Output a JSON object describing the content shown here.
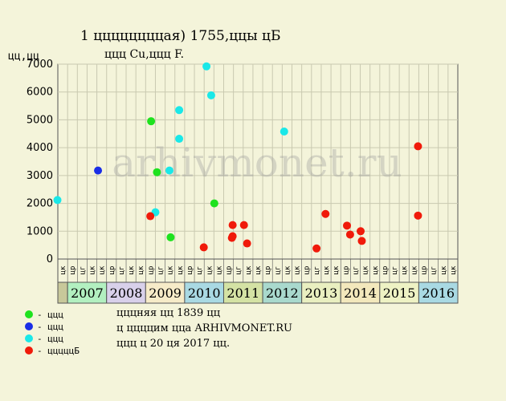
{
  "chart_data": {
    "type": "scatter",
    "title": "1 ццццццццая) 1755,ццы цБ",
    "subtitle": "ццц Cu,ццц F.",
    "ylabel": "цц,цц",
    "ylim": [
      0,
      7000
    ],
    "yticks": [
      0,
      1000,
      2000,
      3000,
      4000,
      5000,
      6000,
      7000
    ],
    "grid": true,
    "quarter_labels": [
      "цк",
      "цр",
      "цг",
      "цк"
    ],
    "years": [
      {
        "label": "2007",
        "color": "#b2f0c0"
      },
      {
        "label": "2008",
        "color": "#d8d0ea"
      },
      {
        "label": "2009",
        "color": "#f6ebc8"
      },
      {
        "label": "2010",
        "color": "#a9d9e3"
      },
      {
        "label": "2011",
        "color": "#d4e2a4"
      },
      {
        "label": "2012",
        "color": "#a9d9cd"
      },
      {
        "label": "2013",
        "color": "#e9efc0"
      },
      {
        "label": "2014",
        "color": "#f3e8bc"
      },
      {
        "label": "2015",
        "color": "#eef2c4"
      },
      {
        "label": "2016",
        "color": "#a9d9e3"
      }
    ],
    "prefix_cell_color": "#c8c89a",
    "series": [
      {
        "name": "- ццц",
        "color": "#1ee21e",
        "points": [
          {
            "x": 2009.14,
            "y": 4950
          },
          {
            "x": 2009.29,
            "y": 3120
          },
          {
            "x": 2009.64,
            "y": 780
          },
          {
            "x": 2010.76,
            "y": 2000
          }
        ]
      },
      {
        "name": "- ццц",
        "color": "#1a2ee6",
        "points": [
          {
            "x": 2007.78,
            "y": 3180
          }
        ]
      },
      {
        "name": "- ццц",
        "color": "#1ae8e8",
        "points": [
          {
            "x": 2006.74,
            "y": 2120
          },
          {
            "x": 2009.25,
            "y": 1680
          },
          {
            "x": 2009.61,
            "y": 3180
          },
          {
            "x": 2009.86,
            "y": 4320
          },
          {
            "x": 2009.86,
            "y": 5350
          },
          {
            "x": 2010.56,
            "y": 6920
          },
          {
            "x": 2010.68,
            "y": 5880
          },
          {
            "x": 2012.55,
            "y": 4580
          }
        ]
      },
      {
        "name": "- цццццБ",
        "color": "#f01a0a",
        "points": [
          {
            "x": 2009.12,
            "y": 1540
          },
          {
            "x": 2010.49,
            "y": 420
          },
          {
            "x": 2011.23,
            "y": 1220
          },
          {
            "x": 2011.23,
            "y": 820
          },
          {
            "x": 2011.21,
            "y": 760
          },
          {
            "x": 2011.52,
            "y": 1220
          },
          {
            "x": 2011.6,
            "y": 560
          },
          {
            "x": 2013.38,
            "y": 380
          },
          {
            "x": 2013.61,
            "y": 1620
          },
          {
            "x": 2014.16,
            "y": 1200
          },
          {
            "x": 2014.24,
            "y": 880
          },
          {
            "x": 2014.51,
            "y": 1000
          },
          {
            "x": 2014.54,
            "y": 650
          },
          {
            "x": 2015.98,
            "y": 4050
          },
          {
            "x": 2015.98,
            "y": 1560
          }
        ]
      }
    ],
    "notes": [
      "цццняя цц 1839 цц",
      "ц ццццим ццa ARHIVMONET.RU",
      "ццц ц 20 ця 2017 цц."
    ],
    "watermark": "arhivmonet.ru"
  }
}
